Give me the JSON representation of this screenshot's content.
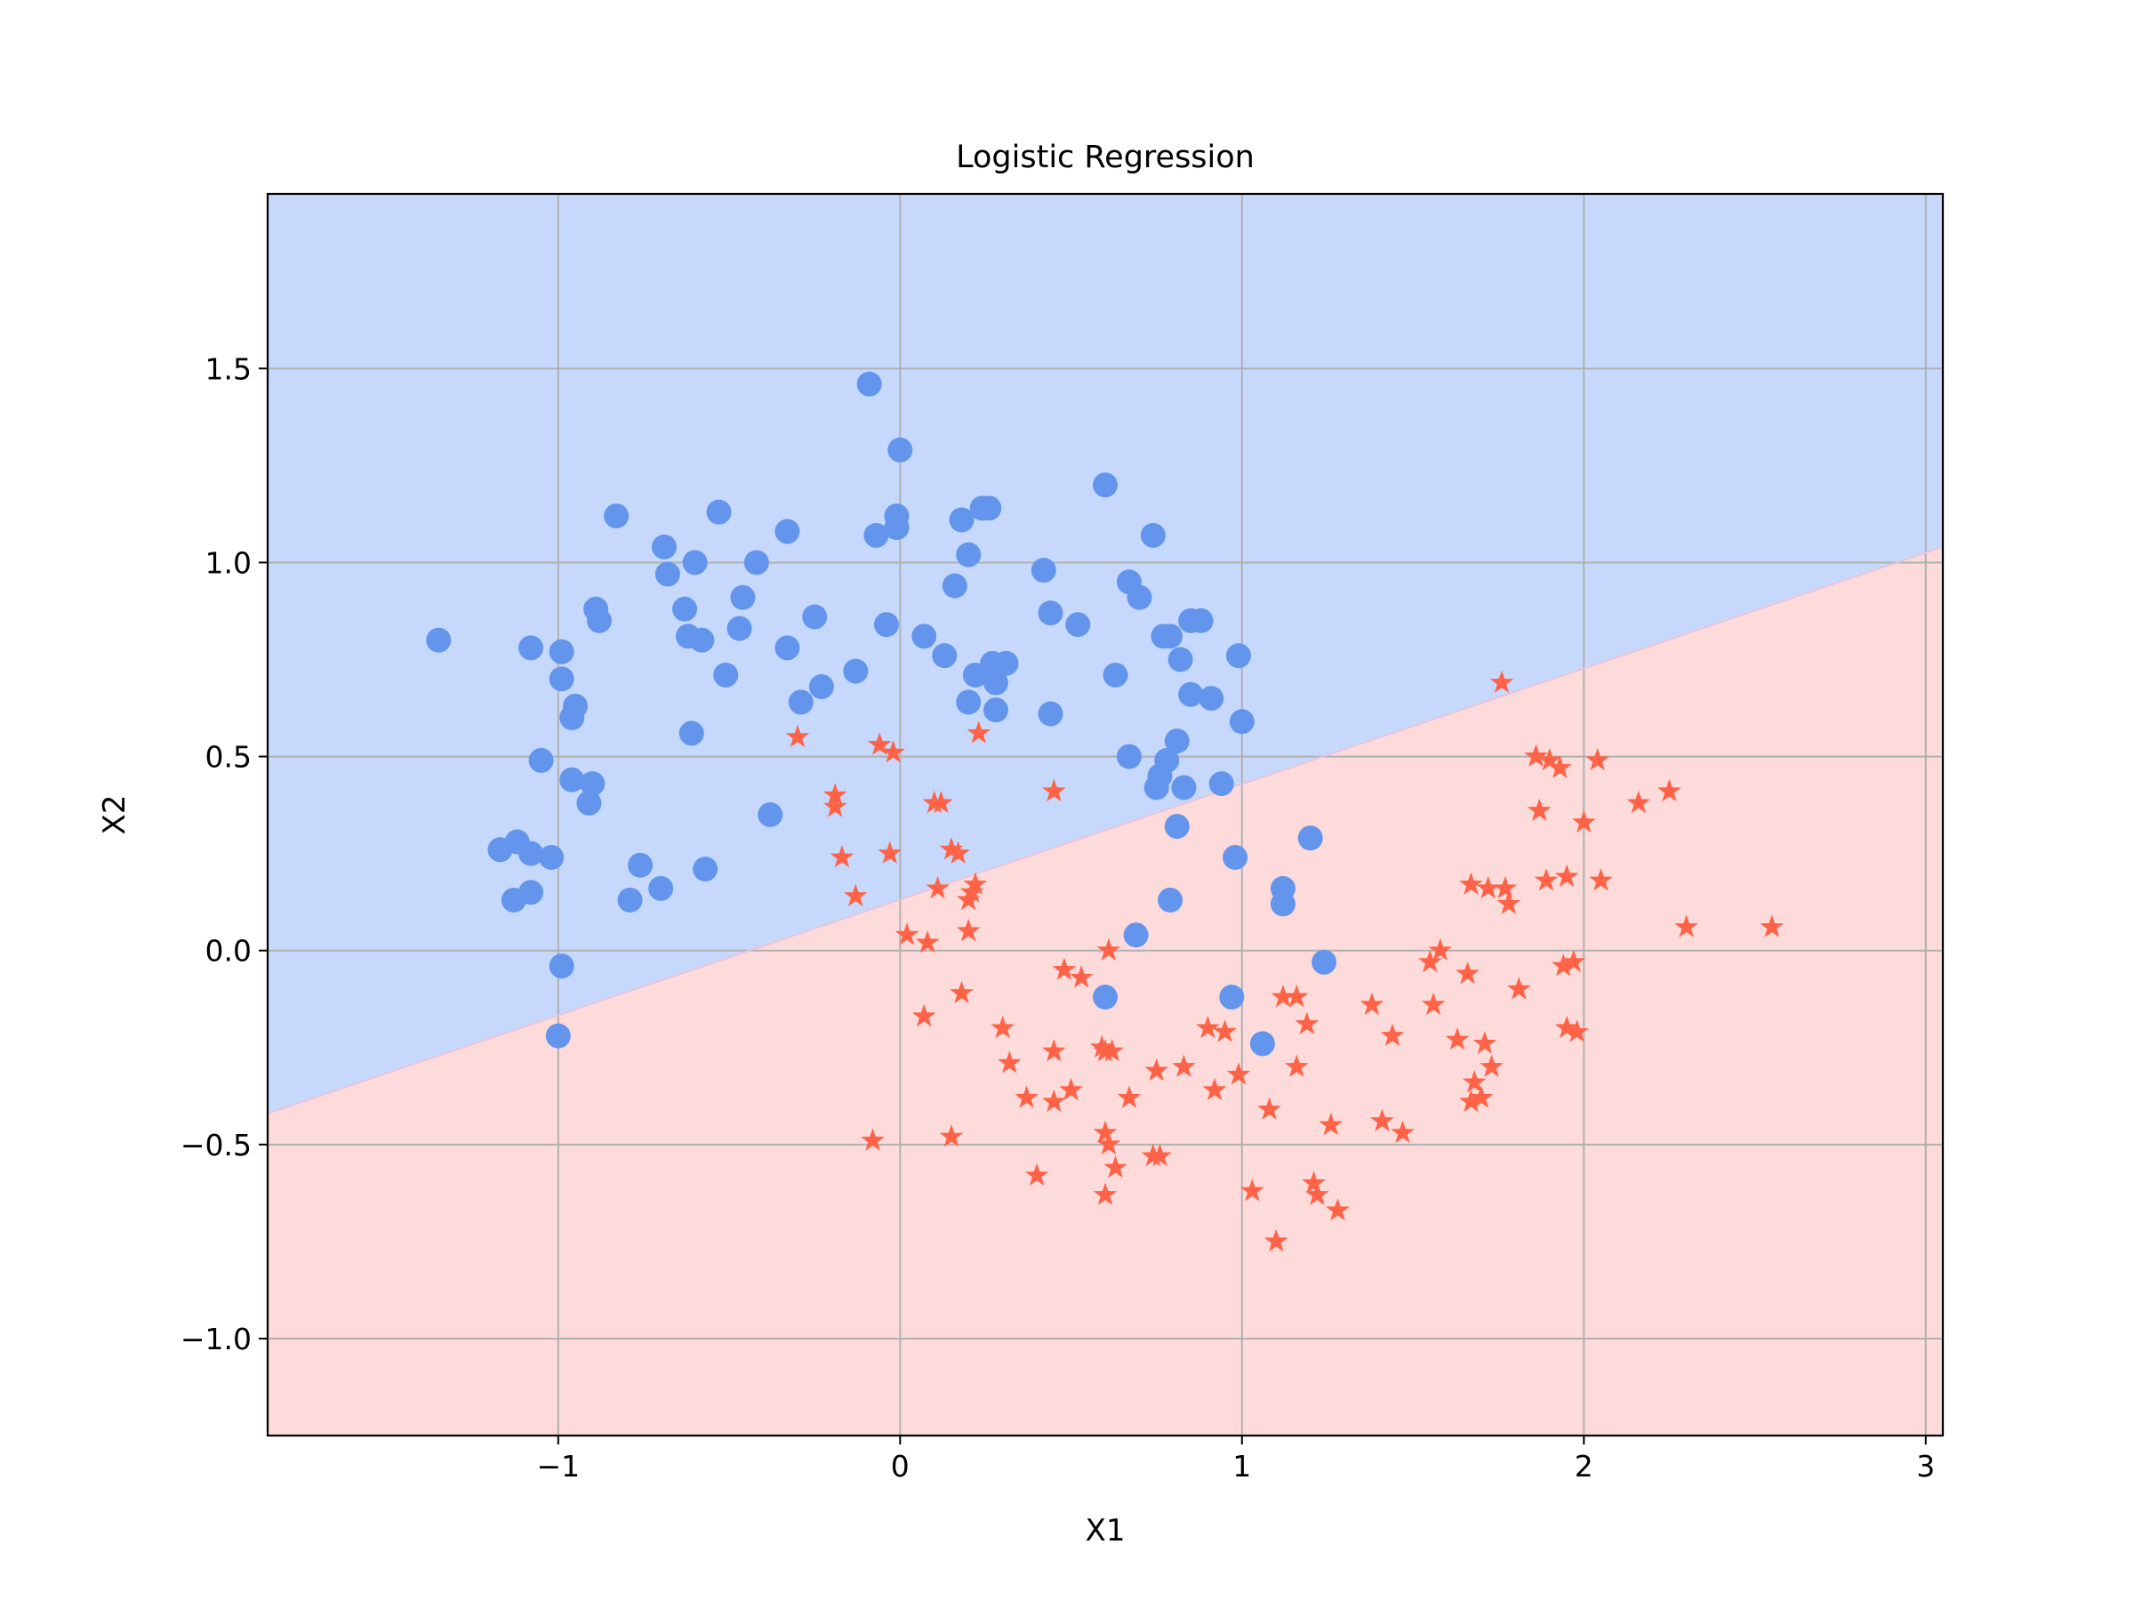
{
  "chart_data": {
    "type": "scatter",
    "title": "Logistic Regression",
    "xlabel": "X1",
    "ylabel": "X2",
    "xlim": [
      -1.85,
      3.05
    ],
    "ylim": [
      -1.25,
      1.95
    ],
    "xticks": [
      -1,
      0,
      1,
      2,
      3
    ],
    "yticks": [
      -1.0,
      -0.5,
      0.0,
      0.5,
      1.0,
      1.5
    ],
    "xtick_labels": [
      "−1",
      "0",
      "1",
      "2",
      "3"
    ],
    "ytick_labels": [
      "−1.0",
      "−0.5",
      "0.0",
      "0.5",
      "1.0",
      "1.5"
    ],
    "grid": true,
    "legend": "none",
    "decision_boundary": {
      "x": [
        -1.85,
        3.05
      ],
      "y": [
        -0.42,
        1.04
      ]
    },
    "regions": [
      {
        "class": "0",
        "side": "above",
        "color": "#c6d9fd"
      },
      {
        "class": "1",
        "side": "below",
        "color": "#fddbdb"
      }
    ],
    "series": [
      {
        "marker": "circle",
        "color": "#6495ed",
        "points": [
          [
            -1.35,
            0.8
          ],
          [
            -1.08,
            0.78
          ],
          [
            -0.99,
            0.77
          ],
          [
            -0.99,
            0.7
          ],
          [
            -0.96,
            0.6
          ],
          [
            -0.95,
            0.63
          ],
          [
            -1.05,
            0.49
          ],
          [
            -0.96,
            0.44
          ],
          [
            -0.9,
            0.43
          ],
          [
            -0.91,
            0.38
          ],
          [
            -0.89,
            0.88
          ],
          [
            -0.88,
            0.85
          ],
          [
            -0.83,
            1.12
          ],
          [
            -1.17,
            0.26
          ],
          [
            -1.12,
            0.28
          ],
          [
            -1.08,
            0.25
          ],
          [
            -1.02,
            0.24
          ],
          [
            -1.13,
            0.13
          ],
          [
            -1.08,
            0.15
          ],
          [
            -0.99,
            -0.04
          ],
          [
            -1.0,
            -0.22
          ],
          [
            -0.79,
            0.13
          ],
          [
            -0.76,
            0.22
          ],
          [
            -0.7,
            0.16
          ],
          [
            -0.69,
            1.04
          ],
          [
            -0.68,
            0.97
          ],
          [
            -0.6,
            1.0
          ],
          [
            -0.63,
            0.88
          ],
          [
            -0.62,
            0.81
          ],
          [
            -0.58,
            0.8
          ],
          [
            -0.61,
            0.56
          ],
          [
            -0.57,
            0.21
          ],
          [
            -0.53,
            1.13
          ],
          [
            -0.51,
            0.71
          ],
          [
            -0.47,
            0.83
          ],
          [
            -0.46,
            0.91
          ],
          [
            -0.42,
            1.0
          ],
          [
            -0.38,
            0.35
          ],
          [
            -0.33,
            1.08
          ],
          [
            -0.33,
            0.78
          ],
          [
            -0.29,
            0.64
          ],
          [
            -0.25,
            0.86
          ],
          [
            -0.23,
            0.68
          ],
          [
            -0.13,
            0.72
          ],
          [
            -0.09,
            1.46
          ],
          [
            -0.07,
            1.07
          ],
          [
            -0.04,
            0.84
          ],
          [
            -0.01,
            1.12
          ],
          [
            -0.01,
            1.09
          ],
          [
            0.0,
            1.29
          ],
          [
            0.07,
            0.81
          ],
          [
            0.13,
            0.76
          ],
          [
            0.16,
            0.94
          ],
          [
            0.18,
            1.11
          ],
          [
            0.2,
            1.02
          ],
          [
            0.2,
            0.64
          ],
          [
            0.22,
            0.71
          ],
          [
            0.24,
            1.14
          ],
          [
            0.26,
            1.14
          ],
          [
            0.27,
            0.74
          ],
          [
            0.28,
            0.69
          ],
          [
            0.28,
            0.62
          ],
          [
            0.31,
            0.74
          ],
          [
            0.42,
            0.98
          ],
          [
            0.44,
            0.87
          ],
          [
            0.44,
            0.61
          ],
          [
            0.52,
            0.84
          ],
          [
            0.6,
            1.2
          ],
          [
            0.63,
            0.71
          ],
          [
            0.67,
            0.95
          ],
          [
            0.7,
            0.91
          ],
          [
            0.67,
            0.5
          ],
          [
            0.74,
            1.07
          ],
          [
            0.77,
            0.81
          ],
          [
            0.79,
            0.81
          ],
          [
            0.82,
            0.75
          ],
          [
            0.85,
            0.85
          ],
          [
            0.88,
            0.85
          ],
          [
            0.85,
            0.66
          ],
          [
            0.91,
            0.65
          ],
          [
            0.81,
            0.54
          ],
          [
            0.78,
            0.49
          ],
          [
            0.76,
            0.45
          ],
          [
            0.75,
            0.42
          ],
          [
            0.83,
            0.42
          ],
          [
            0.94,
            0.43
          ],
          [
            0.81,
            0.32
          ],
          [
            0.98,
            0.24
          ],
          [
            0.79,
            0.13
          ],
          [
            0.69,
            0.04
          ],
          [
            0.6,
            -0.12
          ],
          [
            0.99,
            0.76
          ],
          [
            1.0,
            0.59
          ],
          [
            1.2,
            0.29
          ],
          [
            1.12,
            0.16
          ],
          [
            1.12,
            0.12
          ],
          [
            1.24,
            -0.03
          ],
          [
            0.97,
            -0.12
          ],
          [
            1.06,
            -0.24
          ]
        ]
      },
      {
        "marker": "star",
        "color": "#ff6347",
        "points": [
          [
            -0.3,
            0.55
          ],
          [
            -0.19,
            0.4
          ],
          [
            -0.19,
            0.37
          ],
          [
            -0.17,
            0.24
          ],
          [
            -0.13,
            0.14
          ],
          [
            -0.06,
            0.53
          ],
          [
            -0.02,
            0.51
          ],
          [
            -0.03,
            0.25
          ],
          [
            0.02,
            0.04
          ],
          [
            0.08,
            0.02
          ],
          [
            0.07,
            -0.17
          ],
          [
            -0.08,
            -0.49
          ],
          [
            0.1,
            0.38
          ],
          [
            0.12,
            0.38
          ],
          [
            0.11,
            0.16
          ],
          [
            0.15,
            0.26
          ],
          [
            0.17,
            0.25
          ],
          [
            0.18,
            -0.11
          ],
          [
            0.2,
            0.13
          ],
          [
            0.21,
            0.15
          ],
          [
            0.22,
            0.17
          ],
          [
            0.2,
            0.05
          ],
          [
            0.23,
            0.56
          ],
          [
            0.15,
            -0.48
          ],
          [
            0.3,
            -0.2
          ],
          [
            0.32,
            -0.29
          ],
          [
            0.37,
            -0.38
          ],
          [
            0.4,
            -0.58
          ],
          [
            0.45,
            0.41
          ],
          [
            0.45,
            -0.26
          ],
          [
            0.45,
            -0.39
          ],
          [
            0.48,
            -0.05
          ],
          [
            0.5,
            -0.36
          ],
          [
            0.53,
            -0.07
          ],
          [
            0.59,
            -0.25
          ],
          [
            0.6,
            -0.26
          ],
          [
            0.62,
            -0.26
          ],
          [
            0.61,
            0.0
          ],
          [
            0.6,
            -0.47
          ],
          [
            0.61,
            -0.5
          ],
          [
            0.6,
            -0.63
          ],
          [
            0.63,
            -0.56
          ],
          [
            0.67,
            -0.38
          ],
          [
            0.74,
            -0.53
          ],
          [
            0.76,
            -0.53
          ],
          [
            0.75,
            -0.31
          ],
          [
            0.83,
            -0.3
          ],
          [
            0.9,
            -0.2
          ],
          [
            0.92,
            -0.36
          ],
          [
            0.95,
            -0.21
          ],
          [
            0.99,
            -0.32
          ],
          [
            1.03,
            -0.62
          ],
          [
            1.08,
            -0.41
          ],
          [
            1.1,
            -0.75
          ],
          [
            1.12,
            -0.12
          ],
          [
            1.16,
            -0.12
          ],
          [
            1.16,
            -0.3
          ],
          [
            1.19,
            -0.19
          ],
          [
            1.21,
            -0.6
          ],
          [
            1.22,
            -0.63
          ],
          [
            1.26,
            -0.45
          ],
          [
            1.28,
            -0.67
          ],
          [
            1.38,
            -0.14
          ],
          [
            1.41,
            -0.44
          ],
          [
            1.44,
            -0.22
          ],
          [
            1.47,
            -0.47
          ],
          [
            1.55,
            -0.03
          ],
          [
            1.56,
            -0.14
          ],
          [
            1.58,
            0.0
          ],
          [
            1.63,
            -0.23
          ],
          [
            1.66,
            -0.06
          ],
          [
            1.67,
            0.17
          ],
          [
            1.68,
            -0.34
          ],
          [
            1.67,
            -0.39
          ],
          [
            1.7,
            -0.38
          ],
          [
            1.71,
            -0.24
          ],
          [
            1.72,
            0.16
          ],
          [
            1.73,
            -0.3
          ],
          [
            1.76,
            0.69
          ],
          [
            1.77,
            0.16
          ],
          [
            1.78,
            0.12
          ],
          [
            1.81,
            -0.1
          ],
          [
            1.86,
            0.5
          ],
          [
            1.87,
            0.36
          ],
          [
            1.9,
            0.49
          ],
          [
            1.89,
            0.18
          ],
          [
            1.93,
            0.47
          ],
          [
            1.95,
            0.19
          ],
          [
            1.94,
            -0.04
          ],
          [
            1.97,
            -0.03
          ],
          [
            1.95,
            -0.2
          ],
          [
            1.98,
            -0.21
          ],
          [
            2.0,
            0.33
          ],
          [
            2.04,
            0.49
          ],
          [
            2.05,
            0.18
          ],
          [
            2.16,
            0.38
          ],
          [
            2.25,
            0.41
          ],
          [
            2.3,
            0.06
          ],
          [
            2.55,
            0.06
          ]
        ]
      }
    ]
  }
}
